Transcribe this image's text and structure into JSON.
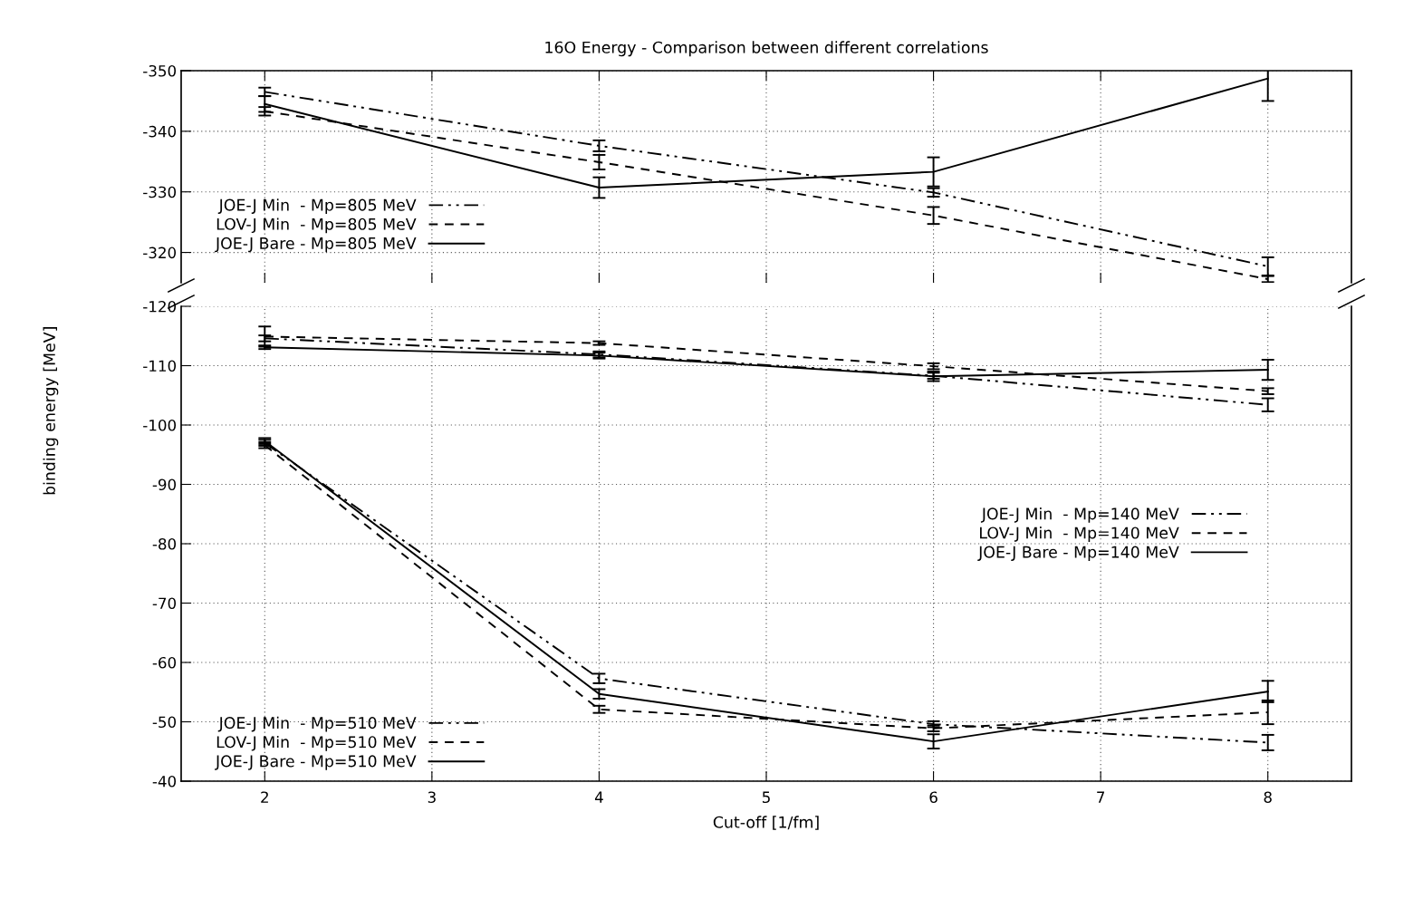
{
  "chart_data": [
    {
      "type": "line",
      "title": "16O Energy - Comparison between different correlations",
      "x": [
        2,
        4,
        6,
        8
      ],
      "xlim": [
        1.5,
        8.5
      ],
      "xticks": [
        2,
        3,
        4,
        5,
        6,
        7,
        8
      ],
      "ylim": [
        -315,
        -350
      ],
      "yticks": [
        -350,
        -340,
        -330,
        -320
      ],
      "grid": true,
      "tick_labels": "y",
      "legend": "left",
      "marker": "none",
      "series": [
        {
          "name": "JOE-J Min  - Mp=805 MeV",
          "color": "#000000",
          "line_style": "dashdot",
          "values": [
            -346.5,
            -337.6,
            -329.9,
            -317.7
          ],
          "errors": [
            0.7,
            0.9,
            0.7,
            1.5
          ]
        },
        {
          "name": "LOV-J Min  - Mp=805 MeV",
          "color": "#000000",
          "line_style": "dashed",
          "values": [
            -343.3,
            -334.9,
            -326.1,
            -315.6
          ],
          "errors": [
            0.7,
            1.2,
            1.4,
            0.5
          ]
        },
        {
          "name": "JOE-J Bare - Mp=805 MeV",
          "color": "#000000",
          "line_style": "solid",
          "values": [
            -344.5,
            -330.7,
            -333.3,
            -348.7
          ],
          "errors": [
            1.3,
            1.7,
            2.4,
            3.7
          ]
        }
      ]
    },
    {
      "type": "line",
      "xlabel": "Cut-off [1/fm]",
      "ylabel": "binding energy [MeV]",
      "x": [
        2,
        4,
        6,
        8
      ],
      "xlim": [
        1.5,
        8.5
      ],
      "xticks": [
        2,
        3,
        4,
        5,
        6,
        7,
        8
      ],
      "ylim": [
        -40,
        -120
      ],
      "yticks": [
        -120,
        -110,
        -100,
        -90,
        -80,
        -70,
        -60,
        -50,
        -40
      ],
      "grid": true,
      "legend": "right",
      "marker": "none",
      "series": [
        {
          "name": "JOE-J Min  - Mp=140 MeV",
          "color": "#000000",
          "line_style": "dashdot",
          "values": [
            -114.6,
            -111.9,
            -108.3,
            -103.4
          ],
          "errors": [
            0.5,
            0.5,
            0.5,
            1.1
          ]
        },
        {
          "name": "LOV-J Min  - Mp=140 MeV",
          "color": "#000000",
          "line_style": "dashed",
          "values": [
            -114.9,
            -113.8,
            -109.9,
            -105.7
          ],
          "errors": [
            1.7,
            0.3,
            0.5,
            0.5
          ]
        },
        {
          "name": "JOE-J Bare - Mp=140 MeV",
          "color": "#000000",
          "line_style": "solid",
          "values": [
            -113.1,
            -111.7,
            -108.2,
            -109.3
          ],
          "errors": [
            0.3,
            0.5,
            0.8,
            1.7
          ]
        }
      ]
    },
    {
      "type": "line",
      "x": [
        2,
        4,
        6,
        8
      ],
      "xlim": [
        1.5,
        8.5
      ],
      "ylim": [
        -40,
        -120
      ],
      "tick_labels": false,
      "legend": "bottom left",
      "marker": "none",
      "series": [
        {
          "name": "JOE-J Min  - Mp=510 MeV",
          "color": "#000000",
          "line_style": "dashdot",
          "values": [
            -97.0,
            -57.3,
            -49.6,
            -46.5
          ],
          "errors": [
            0.5,
            0.8,
            0.5,
            1.3
          ]
        },
        {
          "name": "LOV-J Min  - Mp=510 MeV",
          "color": "#000000",
          "line_style": "dashed",
          "values": [
            -96.6,
            -52.1,
            -48.9,
            -51.6
          ],
          "errors": [
            0.5,
            0.6,
            0.5,
            2.0
          ]
        },
        {
          "name": "JOE-J Bare - Mp=510 MeV",
          "color": "#000000",
          "line_style": "solid",
          "values": [
            -97.3,
            -54.7,
            -46.7,
            -55.1
          ],
          "errors": [
            0.5,
            0.8,
            1.2,
            1.8
          ]
        }
      ]
    }
  ]
}
